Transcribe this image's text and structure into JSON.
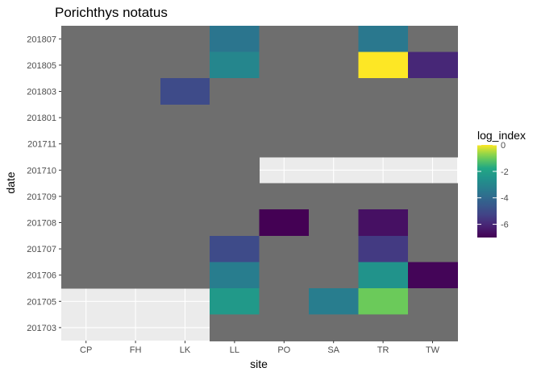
{
  "chart_data": {
    "type": "heatmap",
    "title": "Porichthys notatus",
    "xlabel": "site",
    "ylabel": "date",
    "x_categories": [
      "CP",
      "FH",
      "LK",
      "LL",
      "PO",
      "SA",
      "TR",
      "TW"
    ],
    "y_categories": [
      "201703",
      "201705",
      "201706",
      "201707",
      "201708",
      "201709",
      "201710",
      "201711",
      "201801",
      "201803",
      "201805",
      "201807"
    ],
    "color_scale": {
      "name": "log_index",
      "palette": "viridis",
      "limits": [
        -7,
        0
      ],
      "breaks": [
        0,
        -2,
        -4,
        -6
      ],
      "break_labels": [
        "0",
        "-2",
        "-4",
        "-6"
      ],
      "na_color": "#6e6e6e"
    },
    "cells": [
      {
        "x": "CP",
        "y": "201807",
        "value": null
      },
      {
        "x": "FH",
        "y": "201807",
        "value": null
      },
      {
        "x": "LK",
        "y": "201807",
        "value": null
      },
      {
        "x": "LL",
        "y": "201807",
        "value": -3.6
      },
      {
        "x": "PO",
        "y": "201807",
        "value": null
      },
      {
        "x": "SA",
        "y": "201807",
        "value": null
      },
      {
        "x": "TR",
        "y": "201807",
        "value": -3.5
      },
      {
        "x": "TW",
        "y": "201807",
        "value": null
      },
      {
        "x": "CP",
        "y": "201805",
        "value": null
      },
      {
        "x": "FH",
        "y": "201805",
        "value": null
      },
      {
        "x": "LK",
        "y": "201805",
        "value": null
      },
      {
        "x": "LL",
        "y": "201805",
        "value": -3.0
      },
      {
        "x": "PO",
        "y": "201805",
        "value": null
      },
      {
        "x": "SA",
        "y": "201805",
        "value": null
      },
      {
        "x": "TR",
        "y": "201805",
        "value": 0.0
      },
      {
        "x": "TW",
        "y": "201805",
        "value": -6.0
      },
      {
        "x": "CP",
        "y": "201803",
        "value": null
      },
      {
        "x": "FH",
        "y": "201803",
        "value": null
      },
      {
        "x": "LK",
        "y": "201803",
        "value": -5.0
      },
      {
        "x": "LL",
        "y": "201803",
        "value": null
      },
      {
        "x": "PO",
        "y": "201803",
        "value": null
      },
      {
        "x": "SA",
        "y": "201803",
        "value": null
      },
      {
        "x": "TR",
        "y": "201803",
        "value": null
      },
      {
        "x": "TW",
        "y": "201803",
        "value": null
      },
      {
        "x": "CP",
        "y": "201801",
        "value": null
      },
      {
        "x": "FH",
        "y": "201801",
        "value": null
      },
      {
        "x": "LK",
        "y": "201801",
        "value": null
      },
      {
        "x": "LL",
        "y": "201801",
        "value": null
      },
      {
        "x": "PO",
        "y": "201801",
        "value": null
      },
      {
        "x": "SA",
        "y": "201801",
        "value": null
      },
      {
        "x": "TR",
        "y": "201801",
        "value": null
      },
      {
        "x": "TW",
        "y": "201801",
        "value": null
      },
      {
        "x": "CP",
        "y": "201711",
        "value": null
      },
      {
        "x": "FH",
        "y": "201711",
        "value": null
      },
      {
        "x": "LK",
        "y": "201711",
        "value": null
      },
      {
        "x": "LL",
        "y": "201711",
        "value": null
      },
      {
        "x": "PO",
        "y": "201711",
        "value": null
      },
      {
        "x": "SA",
        "y": "201711",
        "value": null
      },
      {
        "x": "TR",
        "y": "201711",
        "value": null
      },
      {
        "x": "TW",
        "y": "201711",
        "value": null
      },
      {
        "x": "CP",
        "y": "201710",
        "value": null
      },
      {
        "x": "FH",
        "y": "201710",
        "value": null
      },
      {
        "x": "LK",
        "y": "201710",
        "value": null
      },
      {
        "x": "LL",
        "y": "201710",
        "value": null
      },
      {
        "x": "CP",
        "y": "201709",
        "value": null
      },
      {
        "x": "FH",
        "y": "201709",
        "value": null
      },
      {
        "x": "LK",
        "y": "201709",
        "value": null
      },
      {
        "x": "LL",
        "y": "201709",
        "value": null
      },
      {
        "x": "PO",
        "y": "201709",
        "value": null
      },
      {
        "x": "SA",
        "y": "201709",
        "value": null
      },
      {
        "x": "TR",
        "y": "201709",
        "value": null
      },
      {
        "x": "TW",
        "y": "201709",
        "value": null
      },
      {
        "x": "CP",
        "y": "201708",
        "value": null
      },
      {
        "x": "FH",
        "y": "201708",
        "value": null
      },
      {
        "x": "LK",
        "y": "201708",
        "value": null
      },
      {
        "x": "LL",
        "y": "201708",
        "value": null
      },
      {
        "x": "PO",
        "y": "201708",
        "value": -7.0
      },
      {
        "x": "SA",
        "y": "201708",
        "value": null
      },
      {
        "x": "TR",
        "y": "201708",
        "value": -6.6
      },
      {
        "x": "TW",
        "y": "201708",
        "value": null
      },
      {
        "x": "CP",
        "y": "201707",
        "value": null
      },
      {
        "x": "FH",
        "y": "201707",
        "value": null
      },
      {
        "x": "LK",
        "y": "201707",
        "value": null
      },
      {
        "x": "LL",
        "y": "201707",
        "value": -5.0
      },
      {
        "x": "PO",
        "y": "201707",
        "value": null
      },
      {
        "x": "SA",
        "y": "201707",
        "value": null
      },
      {
        "x": "TR",
        "y": "201707",
        "value": -5.5
      },
      {
        "x": "TW",
        "y": "201707",
        "value": null
      },
      {
        "x": "CP",
        "y": "201706",
        "value": null
      },
      {
        "x": "FH",
        "y": "201706",
        "value": null
      },
      {
        "x": "LK",
        "y": "201706",
        "value": null
      },
      {
        "x": "LL",
        "y": "201706",
        "value": -3.3
      },
      {
        "x": "PO",
        "y": "201706",
        "value": null
      },
      {
        "x": "SA",
        "y": "201706",
        "value": null
      },
      {
        "x": "TR",
        "y": "201706",
        "value": -2.5
      },
      {
        "x": "TW",
        "y": "201706",
        "value": -6.9
      },
      {
        "x": "LL",
        "y": "201705",
        "value": -2.3
      },
      {
        "x": "PO",
        "y": "201705",
        "value": null
      },
      {
        "x": "SA",
        "y": "201705",
        "value": -3.3
      },
      {
        "x": "TR",
        "y": "201705",
        "value": -1.0
      },
      {
        "x": "TW",
        "y": "201705",
        "value": null
      },
      {
        "x": "LL",
        "y": "201703",
        "value": null
      },
      {
        "x": "PO",
        "y": "201703",
        "value": null
      },
      {
        "x": "SA",
        "y": "201703",
        "value": null
      },
      {
        "x": "TR",
        "y": "201703",
        "value": null
      },
      {
        "x": "TW",
        "y": "201703",
        "value": null
      }
    ]
  }
}
